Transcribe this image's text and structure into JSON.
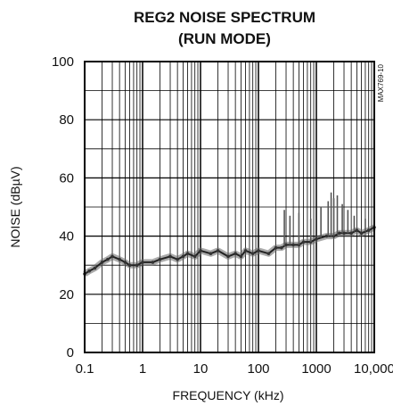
{
  "chart_data": {
    "type": "line",
    "title": "REG2 NOISE SPECTRUM",
    "subtitle": "(RUN MODE)",
    "xlabel": "FREQUENCY (kHz)",
    "ylabel": "NOISE (dBµV)",
    "x_scale": "log",
    "xlim": [
      0.1,
      10000
    ],
    "ylim": [
      0,
      100
    ],
    "x_ticks": [
      0.1,
      1,
      10,
      100,
      1000,
      10000
    ],
    "x_tick_labels": [
      "0.1",
      "1",
      "10",
      "100",
      "1000",
      "10,000"
    ],
    "y_ticks": [
      0,
      20,
      40,
      60,
      80,
      100
    ],
    "y_tick_labels": [
      "0",
      "20",
      "40",
      "60",
      "80",
      "100"
    ],
    "grid": true,
    "part_code": "MAX769-10",
    "series": [
      {
        "x": [
          0.1,
          0.12,
          0.15,
          0.2,
          0.25,
          0.3,
          0.4,
          0.5,
          0.6,
          0.8,
          1,
          1.5,
          2,
          3,
          4,
          5,
          6,
          8,
          10,
          15,
          20,
          30,
          40,
          50,
          60,
          80,
          100,
          150,
          200,
          250,
          300,
          400,
          500,
          600,
          800,
          1000,
          1500,
          2000,
          2500,
          3000,
          4000,
          5000,
          6000,
          8000,
          10000
        ],
        "y": [
          27,
          28,
          29,
          31,
          32,
          33,
          32,
          31,
          30,
          30,
          31,
          31,
          32,
          33,
          32,
          33,
          34,
          33,
          35,
          34,
          35,
          33,
          34,
          33,
          35,
          34,
          35,
          34,
          36,
          36,
          37,
          37,
          37,
          38,
          38,
          39,
          40,
          40,
          41,
          41,
          41,
          42,
          41,
          42,
          43
        ]
      }
    ],
    "spikes": {
      "x": [
        280,
        350,
        500,
        800,
        1200,
        1600,
        1800,
        2000,
        2300,
        2800,
        3500,
        4500,
        7000
      ],
      "y": [
        49,
        47,
        48,
        46,
        50,
        52,
        55,
        53,
        54,
        51,
        49,
        47,
        46
      ]
    }
  }
}
